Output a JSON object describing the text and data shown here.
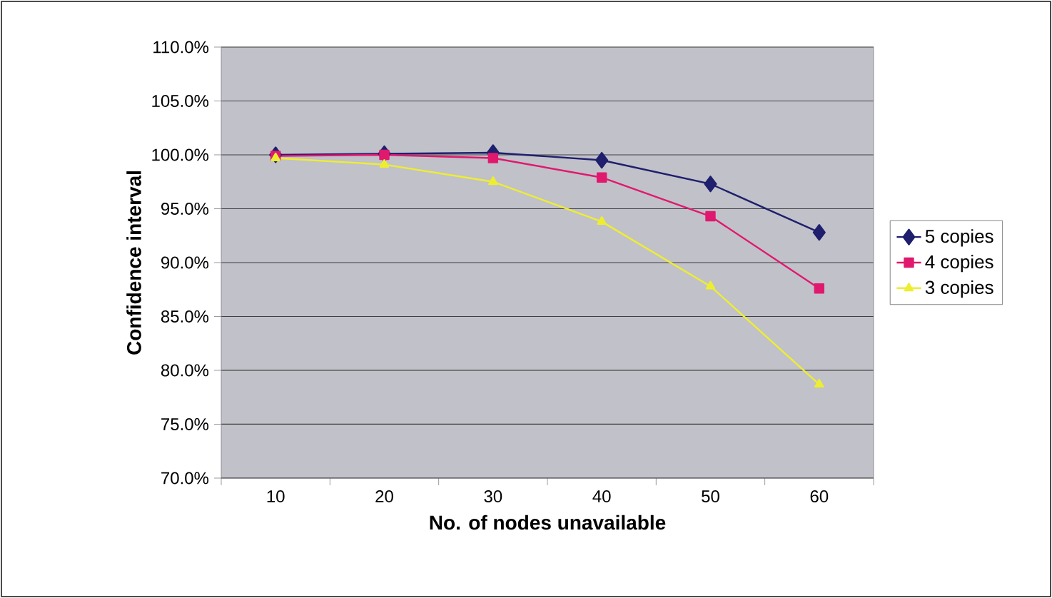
{
  "chart_data": {
    "type": "line",
    "xlabel": "No. of nodes unavailable",
    "ylabel": "Confidence interval",
    "categories": [
      "10",
      "20",
      "30",
      "40",
      "50",
      "60"
    ],
    "series": [
      {
        "name": "5 copies",
        "color": "#1f1f6e",
        "marker": "diamond",
        "values": [
          100.0,
          100.1,
          100.2,
          99.5,
          97.3,
          92.8
        ]
      },
      {
        "name": "4 copies",
        "color": "#e0196e",
        "marker": "square",
        "values": [
          99.9,
          100.0,
          99.7,
          97.9,
          94.3,
          87.6
        ]
      },
      {
        "name": "3 copies",
        "color": "#eeee30",
        "marker": "triangle",
        "values": [
          99.7,
          99.1,
          97.5,
          93.8,
          87.8,
          78.7
        ]
      }
    ],
    "ylim": [
      70,
      110
    ],
    "yticks": [
      {
        "value": 70,
        "label": "70.0%"
      },
      {
        "value": 75,
        "label": "75.0%"
      },
      {
        "value": 80,
        "label": "80.0%"
      },
      {
        "value": 85,
        "label": "85.0%"
      },
      {
        "value": 90,
        "label": "90.0%"
      },
      {
        "value": 95,
        "label": "95.0%"
      },
      {
        "value": 100,
        "label": "100.0%"
      },
      {
        "value": 105,
        "label": "105.0%"
      },
      {
        "value": 110,
        "label": "110.0%"
      }
    ],
    "grid": "y",
    "legend": "right",
    "line_style": "solid"
  }
}
